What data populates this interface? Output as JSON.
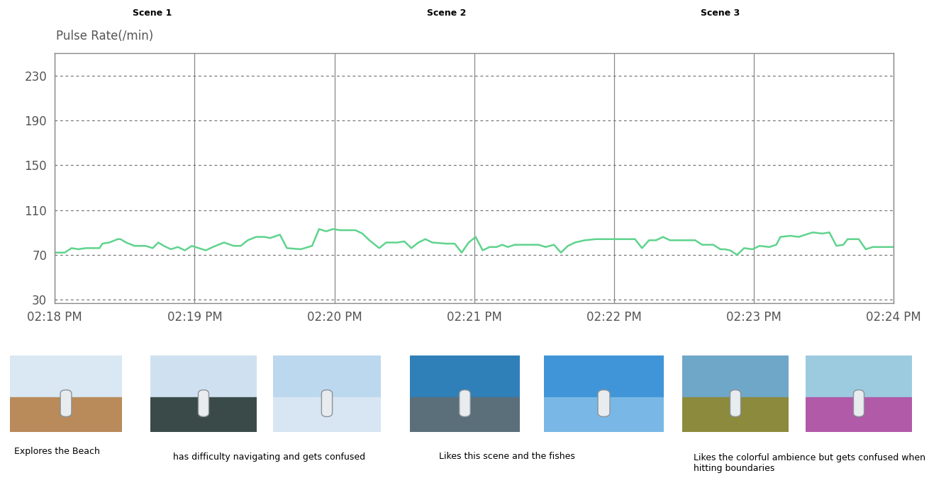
{
  "chart_data": {
    "type": "line",
    "y_label": "Pulse Rate(/min)",
    "scenes": [
      "Scene 1",
      "Scene 2",
      "Scene 3"
    ],
    "annotations": [
      "Explores the Beach",
      "has difficulty navigating and gets confused",
      "Likes this scene and the fishes",
      "Likes the colorful ambience but gets confused when hitting boundaries"
    ],
    "x": [
      18.0,
      18.07,
      18.12,
      18.17,
      18.22,
      18.27,
      18.32,
      18.34,
      18.39,
      18.45,
      18.47,
      18.51,
      18.57,
      18.65,
      18.7,
      18.74,
      18.78,
      18.83,
      18.88,
      18.93,
      18.98,
      19.03,
      19.08,
      19.13,
      19.21,
      19.28,
      19.33,
      19.38,
      19.44,
      19.5,
      19.54,
      19.61,
      19.66,
      19.76,
      19.84,
      19.89,
      19.94,
      19.99,
      20.04,
      20.15,
      20.2,
      20.25,
      20.32,
      20.37,
      20.45,
      20.5,
      20.55,
      20.6,
      20.65,
      20.7,
      20.8,
      20.86,
      20.91,
      20.96,
      21.01,
      21.06,
      21.11,
      21.16,
      21.2,
      21.24,
      21.29,
      21.36,
      21.46,
      21.51,
      21.57,
      21.62,
      21.67,
      21.72,
      21.79,
      21.87,
      21.97,
      22.07,
      22.15,
      22.2,
      22.25,
      22.3,
      22.35,
      22.4,
      22.48,
      22.58,
      22.63,
      22.71,
      22.76,
      22.79,
      22.83,
      22.88,
      22.93,
      22.99,
      23.04,
      23.11,
      23.16,
      23.19,
      23.26,
      23.32,
      23.37,
      23.42,
      23.49,
      23.54,
      23.59,
      23.64,
      23.67,
      23.75,
      23.8,
      23.85,
      24.0
    ],
    "values": [
      72,
      72,
      76,
      75,
      76,
      76,
      76,
      80,
      81,
      84,
      84,
      81,
      78,
      78,
      76,
      81,
      78,
      75,
      77,
      74,
      78,
      76,
      74,
      77,
      81,
      78,
      78,
      83,
      86,
      86,
      85,
      88,
      76,
      75,
      78,
      93,
      91,
      93,
      92,
      92,
      89,
      83,
      76,
      81,
      81,
      82,
      76,
      81,
      84,
      81,
      80,
      80,
      72,
      81,
      86,
      74,
      77,
      77,
      79,
      77,
      79,
      79,
      79,
      77,
      79,
      72,
      78,
      81,
      83,
      84,
      84,
      84,
      84,
      76,
      83,
      83,
      86,
      83,
      83,
      83,
      79,
      79,
      75,
      75,
      74,
      70,
      76,
      75,
      78,
      77,
      79,
      86,
      87,
      86,
      88,
      90,
      89,
      90,
      78,
      79,
      84,
      84,
      75,
      77,
      77
    ],
    "color": "#5fd38d",
    "xlim": [
      18,
      24
    ],
    "xticks": [
      {
        "value": 18,
        "label": "02:18 PM"
      },
      {
        "value": 19,
        "label": "02:19 PM"
      },
      {
        "value": 20,
        "label": "02:20 PM"
      },
      {
        "value": 21,
        "label": "02:21 PM"
      },
      {
        "value": 22,
        "label": "02:22 PM"
      },
      {
        "value": 23,
        "label": "02:23 PM"
      },
      {
        "value": 24,
        "label": "02:24 PM"
      }
    ],
    "ylim": [
      27,
      250
    ],
    "yticks": [
      30,
      70,
      110,
      150,
      190,
      230
    ],
    "grid": true
  }
}
